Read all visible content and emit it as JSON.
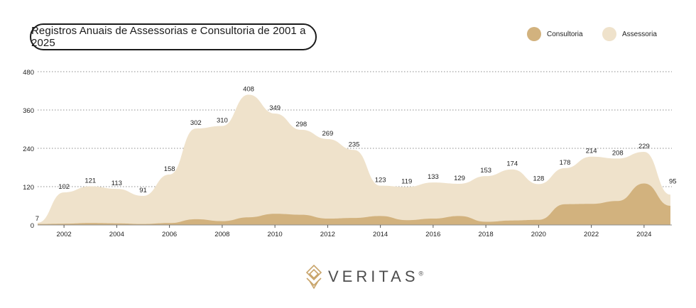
{
  "title": "Registros Anuais de Assessorias e Consultoria de 2001 a 2025",
  "legend": [
    {
      "label": "Consultoria",
      "color": "#d2b27e"
    },
    {
      "label": "Assessoria",
      "color": "#efe2cb"
    }
  ],
  "logo": {
    "text": "VERITAS",
    "mark": "®"
  },
  "chart_data": {
    "type": "area",
    "title": "Registros Anuais de Assessorias e Consultoria de 2001 a 2025",
    "x": [
      2001,
      2002,
      2003,
      2004,
      2005,
      2006,
      2007,
      2008,
      2009,
      2010,
      2011,
      2012,
      2013,
      2014,
      2015,
      2016,
      2017,
      2018,
      2019,
      2020,
      2021,
      2022,
      2023,
      2024,
      2025
    ],
    "x_ticks": [
      "2002",
      "2004",
      "2006",
      "2008",
      "2010",
      "2012",
      "2014",
      "2016",
      "2018",
      "2020",
      "2022",
      "2024"
    ],
    "y_ticks": [
      "0",
      "120",
      "240",
      "360",
      "480"
    ],
    "ylim": [
      0,
      480
    ],
    "grid": true,
    "legend_position": "top-right",
    "series": [
      {
        "name": "Assessoria",
        "color": "#efe2cb",
        "values": [
          7,
          102,
          121,
          113,
          91,
          158,
          302,
          310,
          408,
          349,
          298,
          269,
          235,
          123,
          119,
          133,
          129,
          153,
          174,
          128,
          178,
          214,
          208,
          229,
          95
        ],
        "labels": [
          "7",
          "102",
          "121",
          "113",
          "91",
          "158",
          "302",
          "310",
          "408",
          "349",
          "298",
          "269",
          "235",
          "123",
          "119",
          "133",
          "129",
          "153",
          "174",
          "128",
          "178",
          "214",
          "208",
          "229",
          "95"
        ]
      },
      {
        "name": "Consultoria",
        "color": "#d2b27e",
        "values": [
          3,
          4,
          6,
          5,
          3,
          6,
          18,
          12,
          24,
          35,
          32,
          20,
          22,
          28,
          15,
          20,
          28,
          10,
          14,
          16,
          65,
          66,
          75,
          130,
          60
        ]
      }
    ]
  }
}
